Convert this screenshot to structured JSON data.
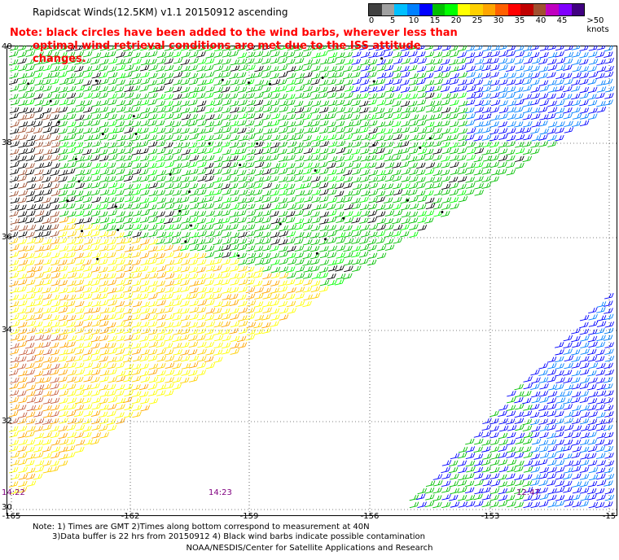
{
  "title": "Rapidscat Winds(12.5KM) v1.1 20150912 ascending",
  "note_line1": "Note: black circles have been added to the wind barbs, wherever less than",
  "note_line2": "optimal wind retrieval conditions are met due to the ISS attitude changes.",
  "colorbar": {
    "labels": [
      "0",
      "5",
      "10",
      "15",
      "20",
      "25",
      "30",
      "35",
      "40",
      "45",
      ">50 knots"
    ],
    "colors": [
      "#404040",
      "#a0a0a0",
      "#00bfff",
      "#0080ff",
      "#0000ff",
      "#00c000",
      "#00ff00",
      "#ffff00",
      "#ffd000",
      "#ffa500",
      "#ff6000",
      "#ff0000",
      "#c00000",
      "#a05030",
      "#c000c0",
      "#8000ff",
      "#400080"
    ]
  },
  "lat_labels": [
    "40",
    "38",
    "36",
    "34",
    "32",
    "30"
  ],
  "lon_labels": [
    "-165",
    "-162",
    "-159",
    "-156",
    "-153",
    "-15"
  ],
  "times": [
    "14:22",
    "14:23",
    "12:47"
  ],
  "footnote_line1": "Note: 1) Times are GMT 2)Times along bottom correspond to measurement at 40N",
  "footnote_line2": "3)Data buffer is 22 hrs from 20150912 4) Black wind barbs indicate possible contamination",
  "credit": "NOAA/NESDIS/Center for Satellite Applications and Research"
}
